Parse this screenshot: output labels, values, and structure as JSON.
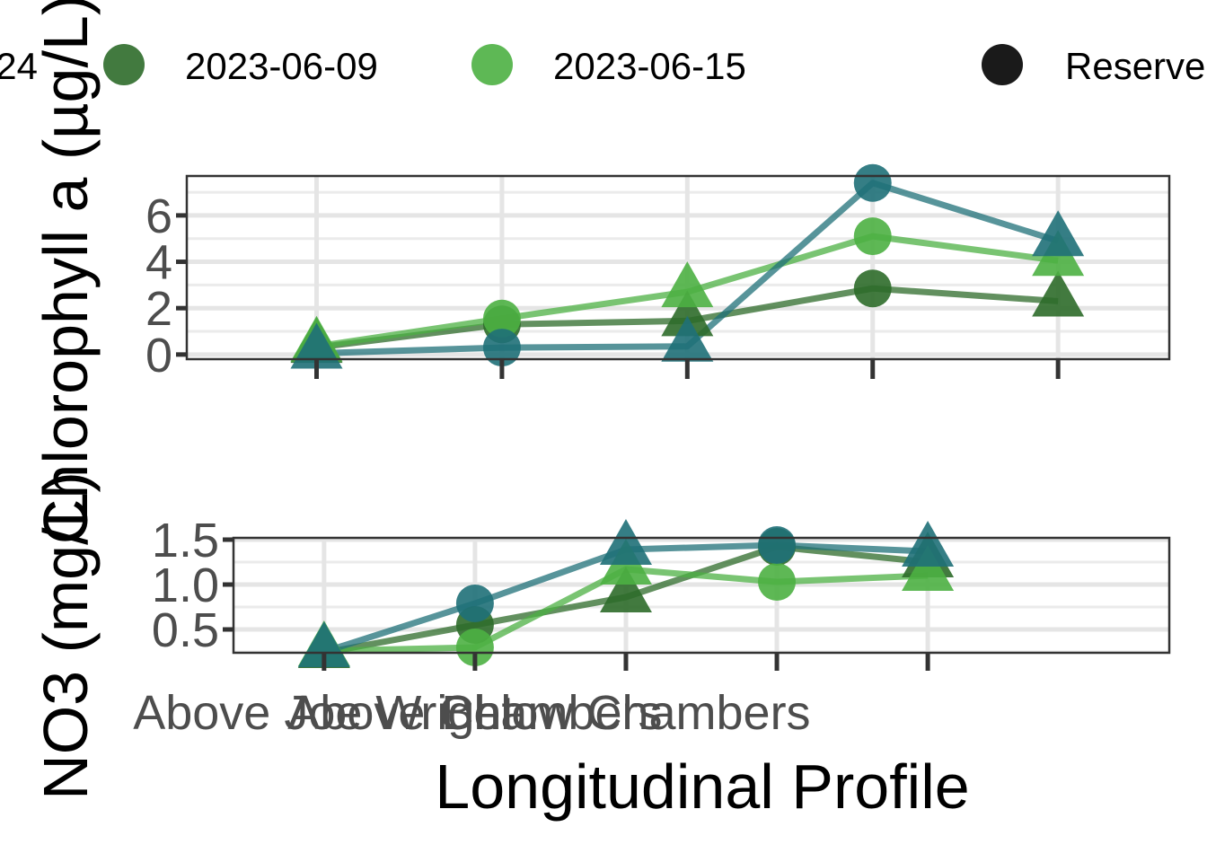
{
  "chart_data": [
    {
      "type": "line",
      "ylabel": "Chlorophyll a (µg/L)",
      "categories": [
        "Above Joe Wright",
        "Above Chambers",
        "Below Chambers"
      ],
      "tick_positions": [
        1,
        2,
        3,
        4,
        5
      ],
      "xlim": [
        0.3,
        5.6
      ],
      "ylim": [
        -0.2,
        7.7
      ],
      "yticks": [
        0,
        2,
        4,
        6
      ],
      "grid": true,
      "series": [
        {
          "name": "2023-06-09",
          "color": "#2e6b2a",
          "points": [
            [
              1,
              0.3
            ],
            [
              2,
              1.3
            ],
            [
              3,
              1.45
            ],
            [
              4,
              2.85
            ],
            [
              5,
              2.3
            ]
          ],
          "markers": [
            "triangle",
            "circle",
            "triangle",
            "circle",
            "triangle"
          ]
        },
        {
          "name": "2023-06-15",
          "color": "#4cb043",
          "points": [
            [
              1,
              0.35
            ],
            [
              2,
              1.55
            ],
            [
              3,
              2.7
            ],
            [
              4,
              5.1
            ],
            [
              5,
              4.05
            ]
          ],
          "markers": [
            "triangle",
            "circle",
            "triangle",
            "circle",
            "triangle"
          ]
        },
        {
          "color": "#1f7078",
          "points": [
            [
              1,
              0.05
            ],
            [
              2,
              0.3
            ],
            [
              3,
              0.35
            ],
            [
              4,
              7.4
            ],
            [
              5,
              4.9
            ]
          ],
          "markers": [
            "triangle",
            "circle",
            "triangle",
            "circle",
            "triangle"
          ]
        }
      ]
    },
    {
      "type": "line",
      "ylabel": "NO3 (mg/L)",
      "xlabel": "Longitudinal Profile",
      "categories": [
        "Above Joe Wright",
        "Above Chambers",
        "Below Chambers"
      ],
      "tick_positions": [
        1,
        2,
        3,
        4,
        5
      ],
      "xlim": [
        0.4,
        6.6
      ],
      "ylim": [
        0.24,
        1.52
      ],
      "yticks": [
        0.5,
        1.0,
        1.5
      ],
      "ytick_labels": [
        "0.5",
        "1.0",
        "1.5"
      ],
      "grid": true,
      "series": [
        {
          "name": "2023-06-09",
          "color": "#2e6b2a",
          "points": [
            [
              1,
              0.24
            ],
            [
              2,
              0.55
            ],
            [
              3,
              0.86
            ],
            [
              4,
              1.42
            ],
            [
              5,
              1.25
            ]
          ],
          "markers": [
            "triangle",
            "circle",
            "triangle",
            "circle",
            "triangle"
          ]
        },
        {
          "name": "2023-06-15",
          "color": "#4cb043",
          "points": [
            [
              1,
              0.26
            ],
            [
              2,
              0.3
            ],
            [
              3,
              1.17
            ],
            [
              4,
              1.03
            ],
            [
              5,
              1.1
            ]
          ],
          "markers": [
            "triangle",
            "circle",
            "triangle",
            "circle",
            "triangle"
          ]
        },
        {
          "color": "#1f7078",
          "points": [
            [
              1,
              0.25
            ],
            [
              2,
              0.79
            ],
            [
              3,
              1.39
            ],
            [
              4,
              1.44
            ],
            [
              5,
              1.37
            ]
          ],
          "markers": [
            "triangle",
            "circle",
            "triangle",
            "circle",
            "triangle"
          ]
        }
      ]
    }
  ],
  "legend": {
    "items": [
      {
        "label": "24",
        "color": "#1f7078"
      },
      {
        "label": "2023-06-09",
        "color": "#2e6b2a"
      },
      {
        "label": "2023-06-15",
        "color": "#4cb043"
      },
      {
        "label": "Reserve",
        "color": "#1a1a1a"
      }
    ]
  }
}
